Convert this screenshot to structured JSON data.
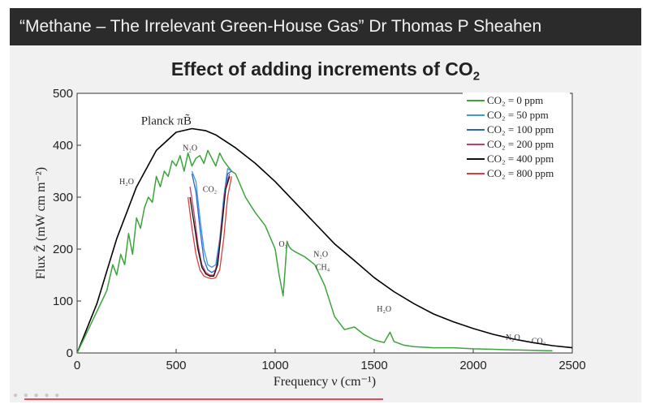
{
  "slide": {
    "banner_title": "“Methane – The Irrelevant Green-House Gas” Dr Thomas P Sheahen",
    "heading_main": "Effect of adding increments of CO",
    "heading_sub": "2"
  },
  "chart_data": {
    "type": "line",
    "title": "Effect of adding increments of CO2",
    "xlabel": "Frequency ν (cm⁻¹)",
    "ylabel": "Flux Z̃ (mW cm m⁻²)",
    "xlim": [
      0,
      2500
    ],
    "ylim": [
      0,
      500
    ],
    "x_ticks": [
      "0",
      "500",
      "1000",
      "1500",
      "2000",
      "2500"
    ],
    "y_ticks": [
      "0",
      "100",
      "200",
      "300",
      "400",
      "500"
    ],
    "legend_position": "top-right",
    "legend": [
      "CO₂ = 0 ppm",
      "CO₂ = 50 ppm",
      "CO₂ = 100 ppm",
      "CO₂ = 200 ppm",
      "CO₂ = 400 ppm",
      "CO₂ = 800 ppm"
    ],
    "planck_label": "Planck πB̃",
    "annotations": [
      {
        "text": "H₂O",
        "x": 250,
        "y": 325
      },
      {
        "text": "N₂O",
        "x": 570,
        "y": 390
      },
      {
        "text": "CO₂",
        "x": 670,
        "y": 310
      },
      {
        "text": "O₃",
        "x": 1040,
        "y": 205
      },
      {
        "text": "N₂O",
        "x": 1230,
        "y": 185
      },
      {
        "text": "CH₄",
        "x": 1240,
        "y": 160
      },
      {
        "text": "H₂O",
        "x": 1550,
        "y": 80
      },
      {
        "text": "N₂O",
        "x": 2200,
        "y": 25
      },
      {
        "text": "CO₂",
        "x": 2330,
        "y": 18
      }
    ],
    "planck_curve": {
      "name": "Planck",
      "color": "#000000",
      "x": [
        0,
        100,
        200,
        300,
        400,
        500,
        580,
        650,
        700,
        800,
        900,
        1000,
        1100,
        1200,
        1300,
        1400,
        1500,
        1600,
        1700,
        1800,
        1900,
        2000,
        2100,
        2200,
        2300,
        2400,
        2500
      ],
      "y": [
        0,
        95,
        220,
        320,
        390,
        425,
        432,
        428,
        420,
        395,
        365,
        330,
        290,
        250,
        210,
        178,
        145,
        118,
        95,
        75,
        60,
        47,
        36,
        27,
        20,
        14,
        10
      ]
    },
    "series": [
      {
        "name": "CO₂ = 0 ppm",
        "color": "#3aa53a",
        "x": [
          0,
          50,
          100,
          150,
          180,
          200,
          220,
          240,
          260,
          280,
          300,
          320,
          340,
          360,
          380,
          400,
          420,
          440,
          460,
          480,
          500,
          520,
          540,
          560,
          580,
          600,
          620,
          640,
          660,
          680,
          700,
          720,
          740,
          760,
          780,
          800,
          850,
          900,
          950,
          1000,
          1020,
          1040,
          1050,
          1060,
          1070,
          1080,
          1100,
          1150,
          1200,
          1250,
          1300,
          1350,
          1400,
          1450,
          1500,
          1550,
          1580,
          1600,
          1650,
          1700,
          1800,
          1900,
          2000,
          2100,
          2200,
          2300,
          2400
        ],
        "y": [
          0,
          40,
          80,
          120,
          170,
          150,
          190,
          170,
          230,
          190,
          260,
          240,
          280,
          300,
          290,
          340,
          320,
          350,
          340,
          370,
          360,
          380,
          350,
          385,
          360,
          375,
          380,
          365,
          390,
          375,
          360,
          385,
          370,
          360,
          350,
          345,
          300,
          270,
          245,
          200,
          150,
          110,
          160,
          215,
          205,
          200,
          195,
          185,
          170,
          130,
          70,
          45,
          50,
          35,
          25,
          20,
          40,
          22,
          15,
          12,
          10,
          10,
          8,
          7,
          6,
          5,
          4
        ]
      },
      {
        "name": "CO₂ = 50 ppm",
        "color": "#3a9be0",
        "x": [
          580,
          600,
          620,
          640,
          660,
          680,
          700,
          720,
          740,
          760,
          780
        ],
        "y": [
          350,
          330,
          260,
          200,
          170,
          165,
          170,
          220,
          300,
          355,
          350
        ]
      },
      {
        "name": "CO₂ = 100 ppm",
        "color": "#2e62c9",
        "x": [
          580,
          600,
          620,
          640,
          660,
          680,
          700,
          720,
          740,
          760,
          780
        ],
        "y": [
          345,
          310,
          240,
          180,
          160,
          155,
          160,
          210,
          290,
          345,
          350
        ]
      },
      {
        "name": "CO₂ = 200 ppm",
        "color": "#c0406a",
        "x": [
          570,
          590,
          610,
          630,
          650,
          670,
          690,
          710,
          730,
          750,
          770
        ],
        "y": [
          320,
          270,
          210,
          170,
          155,
          150,
          150,
          175,
          250,
          320,
          345
        ]
      },
      {
        "name": "CO₂ = 400 ppm",
        "color": "#111111",
        "x": [
          570,
          590,
          610,
          630,
          650,
          670,
          690,
          710,
          730,
          750,
          770
        ],
        "y": [
          300,
          250,
          200,
          165,
          152,
          148,
          148,
          170,
          240,
          315,
          340
        ]
      },
      {
        "name": "CO₂ = 800 ppm",
        "color": "#e23b3b",
        "x": [
          560,
          580,
          600,
          620,
          640,
          660,
          680,
          700,
          720,
          740,
          760,
          780
        ],
        "y": [
          300,
          240,
          190,
          160,
          148,
          145,
          143,
          145,
          160,
          220,
          300,
          340
        ]
      }
    ]
  }
}
